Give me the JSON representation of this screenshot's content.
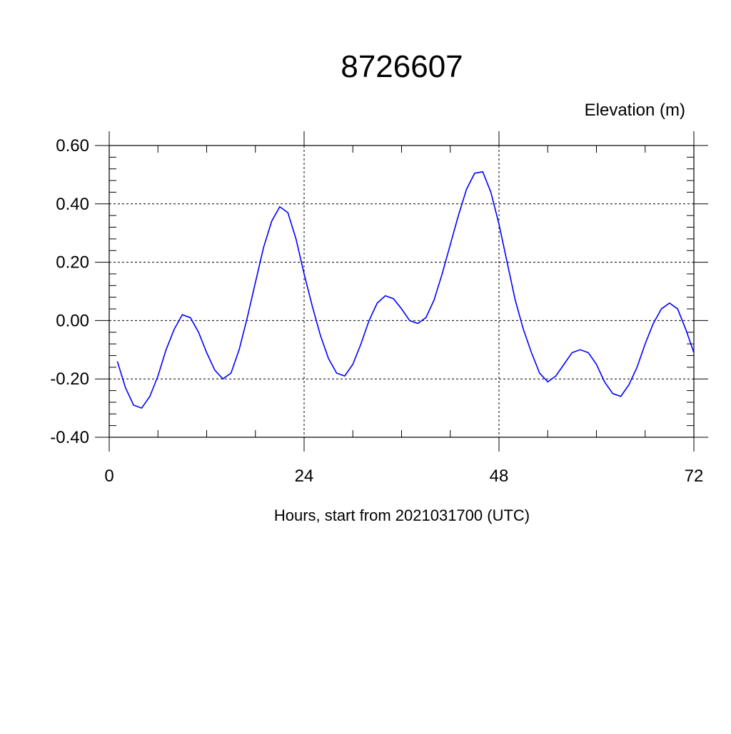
{
  "chart_data": {
    "type": "line",
    "title": "8726607",
    "units_label": "Elevation (m)",
    "xlabel": "Hours, start from 2021031700 (UTC)",
    "xlim": [
      0,
      72
    ],
    "ylim": [
      -0.4,
      0.6
    ],
    "x_ticks": [
      0,
      24,
      48,
      72
    ],
    "x_tick_labels": [
      "0",
      "24",
      "48",
      "72"
    ],
    "y_ticks": [
      -0.4,
      -0.2,
      0.0,
      0.2,
      0.4,
      0.6
    ],
    "y_tick_labels": [
      "-0.40",
      "-0.20",
      "0.00",
      "0.20",
      "0.40",
      "0.60"
    ],
    "grid": "dashed",
    "line_color": "#0000ff",
    "x": [
      1,
      2,
      3,
      4,
      5,
      6,
      7,
      8,
      9,
      10,
      11,
      12,
      13,
      14,
      15,
      16,
      17,
      18,
      19,
      20,
      21,
      22,
      23,
      24,
      25,
      26,
      27,
      28,
      29,
      30,
      31,
      32,
      33,
      34,
      35,
      36,
      37,
      38,
      39,
      40,
      41,
      42,
      43,
      44,
      45,
      46,
      47,
      48,
      49,
      50,
      51,
      52,
      53,
      54,
      55,
      56,
      57,
      58,
      59,
      60,
      61,
      62,
      63,
      64,
      65,
      66,
      67,
      68,
      69,
      70,
      71,
      72
    ],
    "y": [
      -0.14,
      -0.23,
      -0.29,
      -0.3,
      -0.26,
      -0.19,
      -0.1,
      -0.03,
      0.02,
      0.01,
      -0.04,
      -0.11,
      -0.17,
      -0.2,
      -0.18,
      -0.1,
      0.01,
      0.13,
      0.25,
      0.34,
      0.39,
      0.37,
      0.28,
      0.16,
      0.05,
      -0.05,
      -0.13,
      -0.18,
      -0.19,
      -0.15,
      -0.08,
      0.0,
      0.06,
      0.085,
      0.075,
      0.04,
      0.0,
      -0.01,
      0.01,
      0.07,
      0.16,
      0.26,
      0.36,
      0.45,
      0.505,
      0.51,
      0.44,
      0.33,
      0.2,
      0.07,
      -0.03,
      -0.11,
      -0.18,
      -0.21,
      -0.19,
      -0.15,
      -0.11,
      -0.1,
      -0.11,
      -0.15,
      -0.21,
      -0.25,
      -0.26,
      -0.22,
      -0.16,
      -0.08,
      -0.01,
      0.04,
      0.06,
      0.04,
      -0.03,
      -0.11
    ]
  }
}
